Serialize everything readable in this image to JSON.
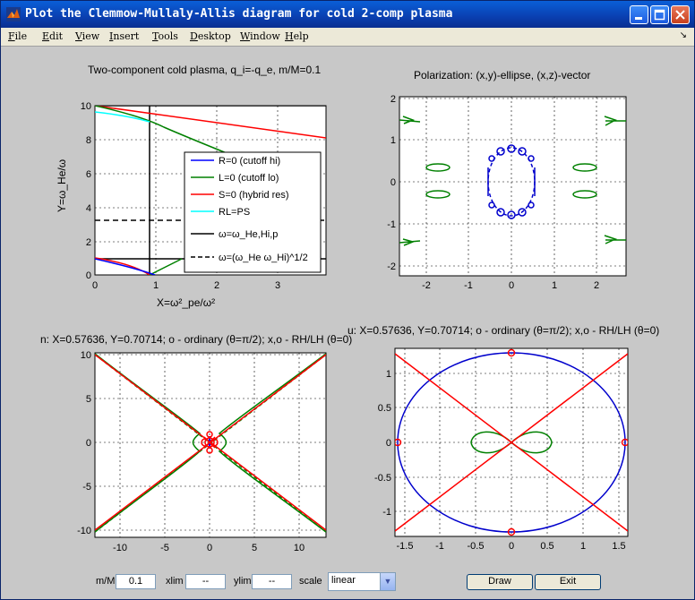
{
  "window": {
    "title": "Plot the Clemmow-Mullaly-Allis diagram for cold 2-comp plasma"
  },
  "menu": {
    "items": [
      {
        "key": "F",
        "rest": "ile"
      },
      {
        "key": "E",
        "rest": "dit"
      },
      {
        "key": "V",
        "rest": "iew"
      },
      {
        "key": "I",
        "rest": "nsert"
      },
      {
        "key": "T",
        "rest": "ools"
      },
      {
        "key": "D",
        "rest": "esktop"
      },
      {
        "key": "W",
        "rest": "indow"
      },
      {
        "key": "H",
        "rest": "elp"
      }
    ],
    "dock_glyph": "↘"
  },
  "plot1": {
    "title": "Two-component cold plasma, q_i=-q_e, m/M=0.1",
    "xlabel": "X=ω²_pe/ω²",
    "ylabel": "Y=ω_He/ω",
    "xticks": [
      "0",
      "1",
      "2",
      "3"
    ],
    "yticks": [
      "0",
      "2",
      "4",
      "6",
      "8",
      "10"
    ],
    "legend": [
      {
        "label": "R=0 (cutoff hi)",
        "color": "#0000ff",
        "dash": false
      },
      {
        "label": "L=0 (cutoff lo)",
        "color": "#008000",
        "dash": false
      },
      {
        "label": "S=0 (hybrid res)",
        "color": "#ff0000",
        "dash": false
      },
      {
        "label": "RL=PS",
        "color": "#00ffff",
        "dash": false
      },
      {
        "label": "ω=ω_He,Hi,p",
        "color": "#000000",
        "dash": false
      },
      {
        "label": "ω=(ω_He ω_Hi)^1/2",
        "color": "#000000",
        "dash": true
      }
    ]
  },
  "plot2": {
    "title": "Polarization: (x,y)-ellipse, (x,z)-vector",
    "xticks": [
      "-2",
      "-1",
      "0",
      "1",
      "2"
    ],
    "yticks": [
      "-2",
      "-1",
      "0",
      "1",
      "2"
    ]
  },
  "plot3": {
    "title": "n: X=0.57636, Y=0.70714; o - ordinary (θ=π/2); x,o - RH/LH (θ=0)",
    "xticks": [
      "-10",
      "-5",
      "0",
      "5",
      "10"
    ],
    "yticks": [
      "-10",
      "-5",
      "0",
      "5",
      "10"
    ]
  },
  "plot4": {
    "title": "u: X=0.57636, Y=0.70714; o - ordinary (θ=π/2); x,o - RH/LH (θ=0)",
    "xticks": [
      "-1.5",
      "-1",
      "-0.5",
      "0",
      "0.5",
      "1",
      "1.5"
    ],
    "yticks": [
      "-1",
      "-0.5",
      "0",
      "0.5",
      "1"
    ]
  },
  "controls": {
    "mM_label": "m/M",
    "mM_value": "0.1",
    "xlim_label": "xlim",
    "xlim_value": "--",
    "ylim_label": "ylim",
    "ylim_value": "--",
    "scale_label": "scale",
    "scale_value": "linear",
    "draw_label": "Draw",
    "exit_label": "Exit"
  }
}
